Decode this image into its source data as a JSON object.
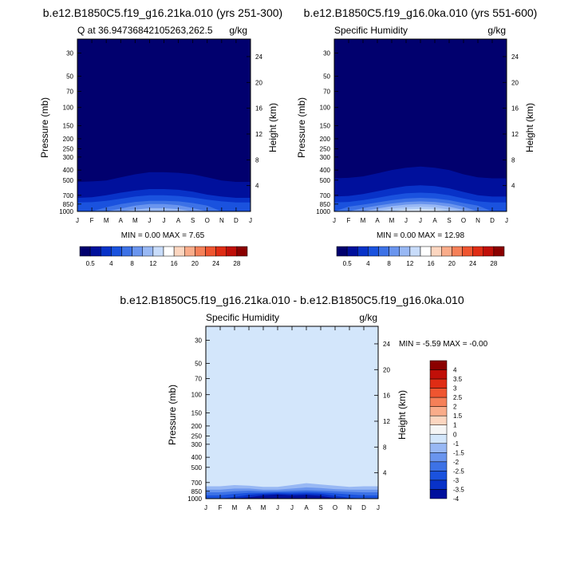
{
  "chart_data": [
    {
      "type": "contour",
      "title": "b.e12.B1850C5.f19_g16.21ka.010 (yrs 251-300)",
      "subtitle_left": "Q at 36.94736842105263,262.5",
      "units": "g/kg",
      "xlabel": "",
      "ylabel": "Pressure (mb)",
      "ylabel_right": "Height (km)",
      "x_ticks": [
        "J",
        "F",
        "M",
        "A",
        "M",
        "J",
        "J",
        "A",
        "S",
        "O",
        "N",
        "D",
        "J"
      ],
      "pressure_ticks": [
        "30",
        "50",
        "70",
        "100",
        "150",
        "200",
        "250",
        "300",
        "400",
        "500",
        "700",
        "850",
        "1000"
      ],
      "pressure_values": [
        30,
        50,
        70,
        100,
        150,
        200,
        250,
        300,
        400,
        500,
        700,
        850,
        1000
      ],
      "height_ticks": [
        "4",
        "8",
        "12",
        "16",
        "20",
        "24"
      ],
      "ylim": [
        1000,
        22
      ],
      "min_max_label": "MIN =   0.00 MAX =   7.65",
      "min": 0.0,
      "max": 7.65,
      "contour_levels": [
        0.5,
        1,
        2,
        3,
        4,
        5,
        6
      ],
      "level_tops_mb": [
        [
          520,
          515,
          505,
          470,
          440,
          420,
          420,
          425,
          440,
          470,
          505,
          520,
          520
        ],
        [
          740,
          730,
          700,
          660,
          630,
          610,
          610,
          620,
          645,
          690,
          720,
          740,
          740
        ],
        [
          820,
          815,
          790,
          755,
          720,
          700,
          700,
          710,
          735,
          770,
          800,
          820,
          820
        ],
        [
          1000,
          1000,
          910,
          850,
          810,
          790,
          790,
          800,
          830,
          880,
          1000,
          1000,
          1000
        ],
        [
          1000,
          1000,
          1000,
          940,
          880,
          850,
          850,
          870,
          930,
          1000,
          1000,
          1000,
          1000
        ],
        [
          1000,
          1000,
          1000,
          1000,
          960,
          930,
          930,
          950,
          1000,
          1000,
          1000,
          1000,
          1000
        ],
        [
          1000,
          1000,
          1000,
          1000,
          1000,
          1000,
          1000,
          1000,
          1000,
          1000,
          1000,
          1000,
          1000
        ]
      ],
      "colorbar_labels": [
        "0.5",
        "4",
        "8",
        "12",
        "16",
        "20",
        "24",
        "28"
      ]
    },
    {
      "type": "contour",
      "title": "b.e12.B1850C5.f19_g16.0ka.010 (yrs 551-600)",
      "subtitle_left": "Specific Humidity",
      "units": "g/kg",
      "xlabel": "",
      "ylabel": "Pressure (mb)",
      "ylabel_right": "Height (km)",
      "x_ticks": [
        "J",
        "F",
        "M",
        "A",
        "M",
        "J",
        "J",
        "A",
        "S",
        "O",
        "N",
        "D",
        "J"
      ],
      "pressure_ticks": [
        "30",
        "50",
        "70",
        "100",
        "150",
        "200",
        "250",
        "300",
        "400",
        "500",
        "700",
        "850",
        "1000"
      ],
      "pressure_values": [
        30,
        50,
        70,
        100,
        150,
        200,
        250,
        300,
        400,
        500,
        700,
        850,
        1000
      ],
      "height_ticks": [
        "4",
        "8",
        "12",
        "16",
        "20",
        "24"
      ],
      "ylim": [
        1000,
        22
      ],
      "min_max_label": "MIN =   0.00 MAX =  12.98",
      "min": 0.0,
      "max": 12.98,
      "contour_levels": [
        0.5,
        1,
        2,
        3,
        4,
        6,
        8,
        10,
        12
      ],
      "level_tops_mb": [
        [
          480,
          475,
          460,
          430,
          400,
          380,
          370,
          380,
          400,
          440,
          470,
          480,
          480
        ],
        [
          720,
          710,
          680,
          640,
          600,
          570,
          560,
          570,
          600,
          650,
          700,
          720,
          720
        ],
        [
          820,
          810,
          780,
          740,
          700,
          670,
          660,
          670,
          700,
          750,
          800,
          820,
          820
        ],
        [
          1000,
          900,
          860,
          820,
          780,
          750,
          740,
          750,
          780,
          830,
          880,
          1000,
          1000
        ],
        [
          1000,
          1000,
          930,
          880,
          840,
          810,
          800,
          810,
          840,
          900,
          1000,
          1000,
          1000
        ],
        [
          1000,
          1000,
          1000,
          940,
          890,
          860,
          850,
          860,
          900,
          970,
          1000,
          1000,
          1000
        ],
        [
          1000,
          1000,
          1000,
          1000,
          940,
          910,
          900,
          910,
          960,
          1000,
          1000,
          1000,
          1000
        ],
        [
          1000,
          1000,
          1000,
          1000,
          1000,
          960,
          950,
          960,
          1000,
          1000,
          1000,
          1000,
          1000
        ],
        [
          1000,
          1000,
          1000,
          1000,
          1000,
          1000,
          990,
          1000,
          1000,
          1000,
          1000,
          1000,
          1000
        ]
      ],
      "colorbar_labels": [
        "0.5",
        "4",
        "8",
        "12",
        "16",
        "20",
        "24",
        "28"
      ]
    },
    {
      "type": "contour",
      "title": "b.e12.B1850C5.f19_g16.21ka.010 - b.e12.B1850C5.f19_g16.0ka.010",
      "subtitle_left": "Specific Humidity",
      "units": "g/kg",
      "xlabel": "",
      "ylabel": "Pressure (mb)",
      "ylabel_right": "Height (km)",
      "x_ticks": [
        "J",
        "F",
        "M",
        "A",
        "M",
        "J",
        "J",
        "A",
        "S",
        "O",
        "N",
        "D",
        "J"
      ],
      "pressure_ticks": [
        "30",
        "50",
        "70",
        "100",
        "150",
        "200",
        "250",
        "300",
        "400",
        "500",
        "700",
        "850",
        "1000"
      ],
      "pressure_values": [
        30,
        50,
        70,
        100,
        150,
        200,
        250,
        300,
        400,
        500,
        700,
        850,
        1000
      ],
      "height_ticks": [
        "4",
        "8",
        "12",
        "16",
        "20",
        "24"
      ],
      "ylim": [
        1000,
        22
      ],
      "min_max_label": "MIN =  -5.59 MAX =  -0.00",
      "min": -5.59,
      "max": -0.0,
      "contour_levels": [
        -0.5,
        -1,
        -1.5,
        -2,
        -2.5,
        -3,
        -3.5,
        -4
      ],
      "level_tops_mb": [
        [
          700,
          700,
          680,
          700,
          720,
          720,
          690,
          660,
          680,
          700,
          720,
          710,
          700
        ],
        [
          760,
          760,
          740,
          750,
          770,
          770,
          740,
          710,
          730,
          750,
          770,
          760,
          760
        ],
        [
          820,
          820,
          800,
          800,
          820,
          820,
          800,
          780,
          790,
          810,
          820,
          820,
          820
        ],
        [
          870,
          870,
          850,
          840,
          850,
          850,
          840,
          830,
          840,
          850,
          860,
          870,
          870
        ],
        [
          930,
          930,
          900,
          880,
          880,
          870,
          870,
          860,
          870,
          890,
          910,
          930,
          930
        ],
        [
          1000,
          1000,
          960,
          920,
          900,
          890,
          900,
          890,
          900,
          940,
          980,
          1000,
          1000
        ],
        [
          1000,
          1000,
          1000,
          970,
          930,
          910,
          930,
          920,
          940,
          990,
          1000,
          1000,
          1000
        ],
        [
          1000,
          1000,
          1000,
          1000,
          970,
          950,
          970,
          960,
          990,
          1000,
          1000,
          1000,
          1000
        ]
      ],
      "colorbar_labels": [
        "4",
        "3.5",
        "3",
        "2.5",
        "2",
        "1.5",
        "1",
        "0",
        "-1",
        "-1.5",
        "-2",
        "-2.5",
        "-3",
        "-3.5",
        "-4"
      ]
    }
  ],
  "colors": {
    "seq_palette": [
      "#01006e",
      "#00109c",
      "#0832c8",
      "#1a52de",
      "#3d72e6",
      "#6a95ee",
      "#98b8f4",
      "#c8dcfa",
      "#ffffff",
      "#fcd6c0",
      "#f9ac8a",
      "#f58058",
      "#ef5530",
      "#df2c14",
      "#c00f08",
      "#8b0000"
    ],
    "diff_palette": [
      "#8b0000",
      "#c00f08",
      "#df2c14",
      "#ef5530",
      "#f58058",
      "#f9ac8a",
      "#fcd6c0",
      "#f5f5f5",
      "#d3e6fb",
      "#98b8f4",
      "#6a95ee",
      "#3d72e6",
      "#1a52de",
      "#0832c8",
      "#00109c"
    ],
    "diff_background": "#d3e6fb"
  }
}
